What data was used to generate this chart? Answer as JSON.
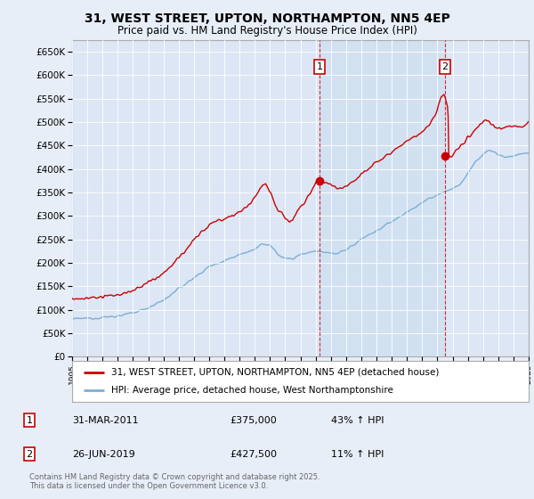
{
  "title1": "31, WEST STREET, UPTON, NORTHAMPTON, NN5 4EP",
  "title2": "Price paid vs. HM Land Registry's House Price Index (HPI)",
  "background_color": "#e8eef8",
  "plot_bg_color": "#dce6f5",
  "ylim": [
    0,
    675000
  ],
  "yticks": [
    0,
    50000,
    100000,
    150000,
    200000,
    250000,
    300000,
    350000,
    400000,
    450000,
    500000,
    550000,
    600000,
    650000
  ],
  "sale1_date": "31-MAR-2011",
  "sale1_price": 375000,
  "sale1_label": "1",
  "sale1_pct": "43% ↑ HPI",
  "sale2_date": "26-JUN-2019",
  "sale2_price": 427500,
  "sale2_label": "2",
  "sale2_pct": "11% ↑ HPI",
  "legend_line1": "31, WEST STREET, UPTON, NORTHAMPTON, NN5 4EP (detached house)",
  "legend_line2": "HPI: Average price, detached house, West Northamptonshire",
  "footer": "Contains HM Land Registry data © Crown copyright and database right 2025.\nThis data is licensed under the Open Government Licence v3.0.",
  "red_color": "#cc0000",
  "blue_color": "#7bafd4",
  "shade_color": "#d0e0f0",
  "sale1_x": 2011.25,
  "sale2_x": 2019.5,
  "xmin": 1995,
  "xmax": 2025
}
